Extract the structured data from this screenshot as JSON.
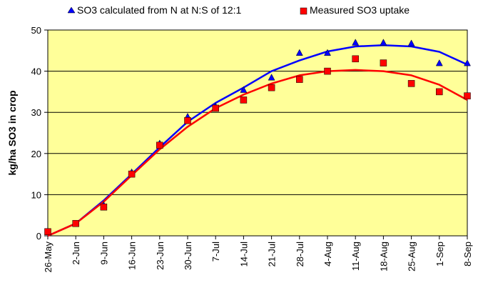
{
  "chart_data": {
    "type": "scatter",
    "title": "",
    "xlabel": "",
    "ylabel": "kg/ha SO3 in crop",
    "ylim": [
      0,
      50
    ],
    "yticks": [
      0,
      10,
      20,
      30,
      40,
      50
    ],
    "xticks": [
      "26-May",
      "2-Jun",
      "9-Jun",
      "16-Jun",
      "23-Jun",
      "30-Jun",
      "7-Jul",
      "14-Jul",
      "21-Jul",
      "28-Jul",
      "4-Aug",
      "11-Aug",
      "18-Aug",
      "25-Aug",
      "1-Sep",
      "8-Sep"
    ],
    "x_index_range": [
      0,
      15
    ],
    "grid": "horizontal",
    "plot_background": "#ffff99",
    "legend_position": "top",
    "series": [
      {
        "name": "SO3 calculated from N at N:S of 12:1",
        "marker": "triangle",
        "color": "#0000ff",
        "points": [
          {
            "x": 0.0,
            "y": 1.0
          },
          {
            "x": 1.0,
            "y": 3.0
          },
          {
            "x": 2.0,
            "y": 7.5
          },
          {
            "x": 3.0,
            "y": 15.5
          },
          {
            "x": 4.0,
            "y": 22.5
          },
          {
            "x": 5.0,
            "y": 29.0
          },
          {
            "x": 6.0,
            "y": 31.5
          },
          {
            "x": 7.0,
            "y": 35.5
          },
          {
            "x": 8.0,
            "y": 38.5
          },
          {
            "x": 9.0,
            "y": 44.5
          },
          {
            "x": 10.0,
            "y": 44.5
          },
          {
            "x": 11.0,
            "y": 47.0
          },
          {
            "x": 12.0,
            "y": 47.0
          },
          {
            "x": 13.0,
            "y": 46.8
          },
          {
            "x": 14.0,
            "y": 42.0
          },
          {
            "x": 15.0,
            "y": 42.0
          }
        ],
        "trend": [
          [
            0,
            0.0
          ],
          [
            1,
            3.0
          ],
          [
            2,
            8.6
          ],
          [
            3,
            15.0
          ],
          [
            4,
            21.5
          ],
          [
            5,
            27.7
          ],
          [
            6,
            32.3
          ],
          [
            7,
            36.0
          ],
          [
            8,
            40.0
          ],
          [
            9,
            42.6
          ],
          [
            10,
            44.8
          ],
          [
            11,
            46.0
          ],
          [
            12,
            46.3
          ],
          [
            13,
            46.0
          ],
          [
            14,
            44.7
          ],
          [
            15,
            41.6
          ]
        ]
      },
      {
        "name": "Measured SO3 uptake",
        "marker": "square",
        "color": "#ff0000",
        "points": [
          {
            "x": 0.0,
            "y": 1.0
          },
          {
            "x": 1.0,
            "y": 3.0
          },
          {
            "x": 2.0,
            "y": 7.0
          },
          {
            "x": 3.0,
            "y": 15.0
          },
          {
            "x": 4.0,
            "y": 22.0
          },
          {
            "x": 5.0,
            "y": 28.0
          },
          {
            "x": 6.0,
            "y": 31.0
          },
          {
            "x": 7.0,
            "y": 33.0
          },
          {
            "x": 8.0,
            "y": 36.0
          },
          {
            "x": 9.0,
            "y": 38.0
          },
          {
            "x": 10.0,
            "y": 40.0
          },
          {
            "x": 11.0,
            "y": 43.0
          },
          {
            "x": 12.0,
            "y": 42.0
          },
          {
            "x": 13.0,
            "y": 37.0
          },
          {
            "x": 14.0,
            "y": 35.0
          },
          {
            "x": 15.0,
            "y": 34.0
          }
        ],
        "trend": [
          [
            0,
            0.0
          ],
          [
            1,
            3.0
          ],
          [
            2,
            8.3
          ],
          [
            3,
            14.7
          ],
          [
            4,
            21.0
          ],
          [
            5,
            26.5
          ],
          [
            6,
            31.0
          ],
          [
            7,
            34.3
          ],
          [
            8,
            37.0
          ],
          [
            9,
            39.0
          ],
          [
            10,
            40.0
          ],
          [
            11,
            40.3
          ],
          [
            12,
            40.0
          ],
          [
            13,
            39.0
          ],
          [
            14,
            36.7
          ],
          [
            15,
            33.0
          ]
        ]
      }
    ]
  }
}
